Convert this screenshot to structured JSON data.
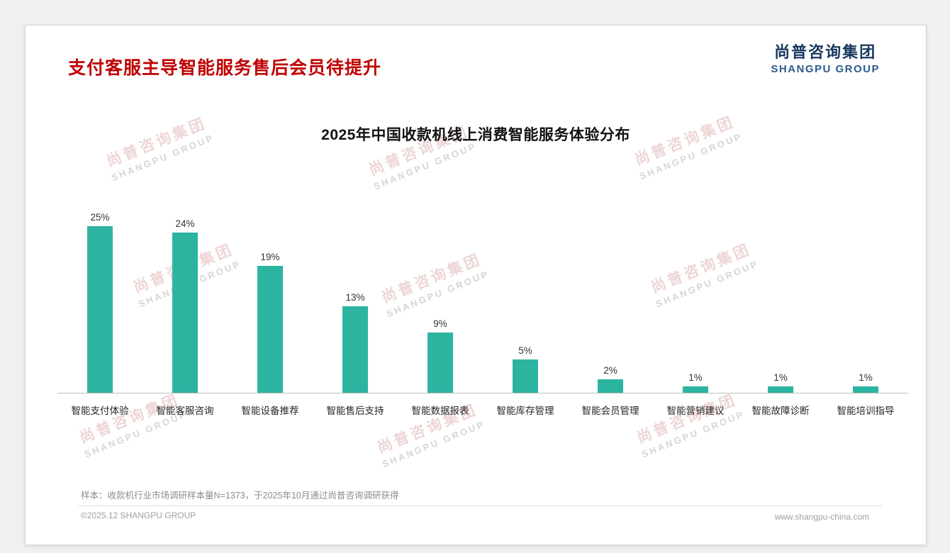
{
  "page": {
    "title": "支付客服主导智能服务售后会员待提升",
    "logo": {
      "cn": "尚普咨询集团",
      "en": "SHANGPU GROUP"
    },
    "footnote": "样本：收款机行业市场调研样本量N=1373，于2025年10月通过尚普咨询调研获得",
    "footer": {
      "left": "©2025.12 SHANGPU GROUP",
      "right": "www.shangpu-china.com"
    },
    "watermark": {
      "line1": "尚普咨询集团",
      "line2": "SHANGPU GROUP"
    }
  },
  "chart_data": {
    "type": "bar",
    "title": "2025年中国收款机线上消费智能服务体验分布",
    "categories": [
      "智能支付体验",
      "智能客服咨询",
      "智能设备推荐",
      "智能售后支持",
      "智能数据报表",
      "智能库存管理",
      "智能会员管理",
      "智能营销建议",
      "智能故障诊断",
      "智能培训指导"
    ],
    "values": [
      25,
      24,
      19,
      13,
      9,
      5,
      2,
      1,
      1,
      1
    ],
    "value_labels": [
      "25%",
      "24%",
      "19%",
      "13%",
      "9%",
      "5%",
      "2%",
      "1%",
      "1%",
      "1%"
    ],
    "xlabel": "",
    "ylabel": "",
    "ylim": [
      0,
      25
    ],
    "grid": false,
    "legend": "none",
    "bar_color": "#2DB4A1",
    "axis_line_color": "#BFBFBF"
  }
}
